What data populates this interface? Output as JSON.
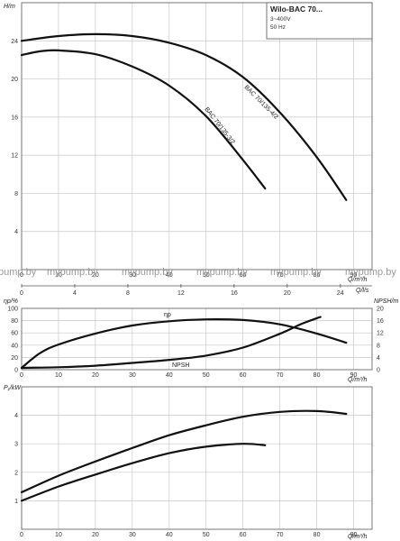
{
  "chart_data": [
    {
      "id": "head",
      "type": "line",
      "ylabel": "H/m",
      "xlabel_top": "Q/l/s",
      "xlabel_bottom": "Q/m³/h",
      "xlim": [
        0,
        95
      ],
      "ylim": [
        0,
        28
      ],
      "y_ticks": [
        4,
        8,
        12,
        16,
        20,
        24
      ],
      "x_ticks": [
        0,
        10,
        20,
        30,
        40,
        50,
        60,
        70,
        80,
        90
      ],
      "x_ticks_ls": [
        0,
        4,
        8,
        12,
        16,
        20,
        24
      ],
      "grid": true,
      "info_box": {
        "title": "Wilo-BAC 70...",
        "lines": [
          "3~400V",
          "50 Hz"
        ]
      },
      "series": [
        {
          "name": "BAC 70/135-4/2",
          "x": [
            0,
            10,
            20,
            30,
            40,
            50,
            60,
            70,
            80,
            88
          ],
          "y": [
            24.0,
            24.5,
            24.7,
            24.5,
            23.8,
            22.5,
            20.2,
            16.5,
            11.8,
            7.3
          ]
        },
        {
          "name": "BAC 70/135-3/2",
          "x": [
            0,
            5,
            10,
            20,
            30,
            40,
            50,
            60,
            66
          ],
          "y": [
            22.5,
            22.9,
            23.0,
            22.6,
            21.3,
            19.3,
            16.1,
            11.5,
            8.5
          ]
        }
      ]
    },
    {
      "id": "efficiency-npsh",
      "type": "line",
      "ylabel_left": "ηp/%",
      "ylabel_right": "NPSH/m",
      "xlabel_top": "Q/l/s",
      "xlabel_bottom": "Q/m³/h",
      "xlim": [
        0,
        95
      ],
      "ylim": [
        0,
        100
      ],
      "y_ticks": [
        0,
        20,
        40,
        60,
        80,
        100
      ],
      "y2_ticks": [
        0,
        4,
        8,
        12,
        16,
        20
      ],
      "y2lim": [
        0,
        20
      ],
      "x_ticks": [
        0,
        10,
        20,
        30,
        40,
        50,
        60,
        70,
        80,
        90
      ],
      "x_ticks_ls": [
        0,
        4,
        8,
        12,
        16,
        20,
        24
      ],
      "grid": true,
      "series": [
        {
          "name": "ηp",
          "axis": "left",
          "x": [
            0,
            5,
            10,
            20,
            30,
            40,
            50,
            60,
            70,
            80,
            88
          ],
          "y": [
            3,
            27,
            41,
            59,
            72,
            79,
            82,
            81,
            74,
            59,
            44
          ]
        },
        {
          "name": "NPSH",
          "axis": "right",
          "x": [
            0,
            10,
            20,
            30,
            40,
            50,
            60,
            70,
            76,
            81
          ],
          "y": [
            0.6,
            0.8,
            1.3,
            2.2,
            3.2,
            4.6,
            7.2,
            11.7,
            15.0,
            17.2
          ]
        }
      ]
    },
    {
      "id": "power",
      "type": "line",
      "ylabel": "P₁/kW",
      "xlabel_bottom": "Q/m³/h",
      "xlim": [
        0,
        95
      ],
      "ylim": [
        0,
        5
      ],
      "y_ticks": [
        1,
        2,
        3,
        4
      ],
      "x_ticks": [
        0,
        10,
        20,
        30,
        40,
        50,
        60,
        70,
        80,
        90
      ],
      "grid": true,
      "series": [
        {
          "name": "",
          "x": [
            0,
            10,
            20,
            30,
            40,
            50,
            60,
            70,
            80,
            88
          ],
          "y": [
            1.3,
            1.88,
            2.38,
            2.85,
            3.3,
            3.65,
            3.95,
            4.12,
            4.15,
            4.05
          ]
        },
        {
          "name": "",
          "x": [
            0,
            10,
            20,
            30,
            40,
            50,
            60,
            66
          ],
          "y": [
            1.0,
            1.5,
            1.92,
            2.32,
            2.67,
            2.9,
            3.0,
            2.95
          ]
        }
      ]
    }
  ],
  "watermark": [
    "pump.by",
    "mypump.by",
    "mypump.by",
    "mypump.by",
    "mypump.by",
    "mypump.by"
  ]
}
